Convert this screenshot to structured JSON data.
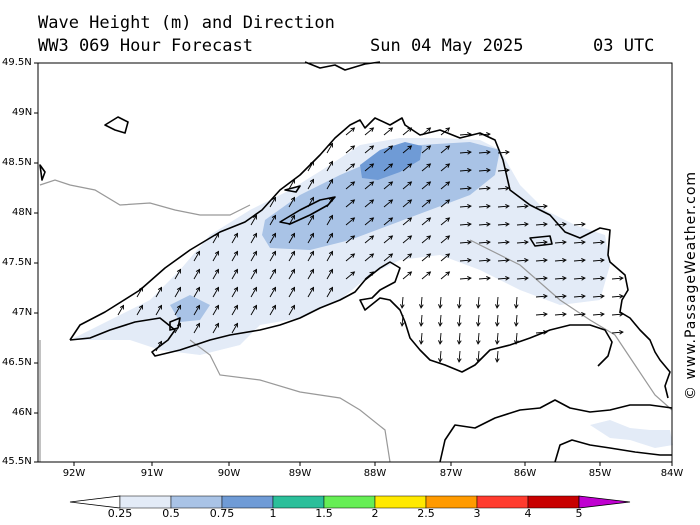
{
  "header": {
    "title": "Wave Height (m) and Direction",
    "model": "WW3 069 Hour Forecast",
    "date": "Sun 04 May 2025",
    "time": "03 UTC"
  },
  "map": {
    "lat_labels": [
      "49.5N",
      "49N",
      "48.5N",
      "48N",
      "47.5N",
      "47N",
      "46.5N",
      "46N",
      "45.5N"
    ],
    "lon_labels": [
      "92W",
      "91W",
      "90W",
      "89W",
      "88W",
      "87W",
      "86W",
      "85W",
      "84W"
    ]
  },
  "watermark": "© www.PassageWeather.com",
  "colorbar": {
    "labels": [
      "0.25",
      "0.5",
      "0.75",
      "1",
      "1.5",
      "2",
      "2.5",
      "3",
      "4",
      "5"
    ],
    "colors": [
      "#ffffff",
      "#e3ebf7",
      "#a9c3e6",
      "#6f9bd6",
      "#2bbf9a",
      "#66ee55",
      "#ffe900",
      "#ff9a00",
      "#ff3b2e",
      "#c80000",
      "#c000d0"
    ]
  },
  "colors": {
    "wave_025": "#e3ebf7",
    "wave_05": "#a9c3e6",
    "wave_075": "#6f9bd6",
    "border": "#999999"
  }
}
